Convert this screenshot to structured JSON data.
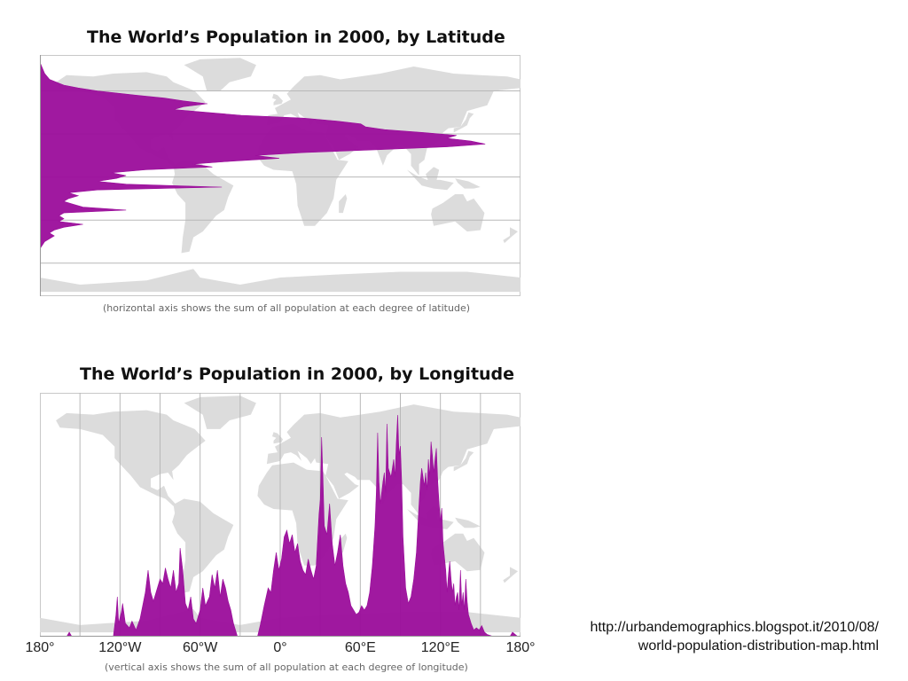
{
  "source_lines": [
    "http://urbandemographics.blogspot.it/2010/08/",
    "world-population-distribution-map.html"
  ],
  "colors": {
    "bars": "#9b0d9b",
    "land": "#dcdcdc",
    "gridlines": "#b8b8b8"
  },
  "chart_data": [
    {
      "type": "area",
      "orientation": "horizontal",
      "title": "The World’s Population in 2000, by Latitude",
      "note": "(horizontal axis shows the sum of all population at each degree of latitude)",
      "background": "world-map",
      "x_axis": "population sum (relative, unlabeled)",
      "y_axis": "latitude (degrees)",
      "ylim": [
        -60,
        90
      ],
      "grid": "horizontal lines every 30° latitude",
      "latitude_profile": [
        {
          "lat": 80,
          "value": 0.0
        },
        {
          "lat": 72,
          "value": 0.01
        },
        {
          "lat": 68,
          "value": 0.02
        },
        {
          "lat": 64,
          "value": 0.05
        },
        {
          "lat": 62,
          "value": 0.08
        },
        {
          "lat": 60,
          "value": 0.12
        },
        {
          "lat": 57,
          "value": 0.2
        },
        {
          "lat": 55,
          "value": 0.26
        },
        {
          "lat": 53,
          "value": 0.3
        },
        {
          "lat": 51,
          "value": 0.35
        },
        {
          "lat": 49,
          "value": 0.3
        },
        {
          "lat": 47,
          "value": 0.28
        },
        {
          "lat": 45,
          "value": 0.35
        },
        {
          "lat": 43,
          "value": 0.42
        },
        {
          "lat": 41,
          "value": 0.55
        },
        {
          "lat": 39,
          "value": 0.62
        },
        {
          "lat": 37,
          "value": 0.67
        },
        {
          "lat": 35,
          "value": 0.68
        },
        {
          "lat": 33,
          "value": 0.72
        },
        {
          "lat": 31,
          "value": 0.8
        },
        {
          "lat": 29,
          "value": 0.87
        },
        {
          "lat": 27,
          "value": 0.85
        },
        {
          "lat": 25,
          "value": 0.9
        },
        {
          "lat": 23,
          "value": 0.93
        },
        {
          "lat": 21,
          "value": 0.85
        },
        {
          "lat": 19,
          "value": 0.7
        },
        {
          "lat": 17,
          "value": 0.55
        },
        {
          "lat": 15,
          "value": 0.45
        },
        {
          "lat": 13,
          "value": 0.5
        },
        {
          "lat": 11,
          "value": 0.4
        },
        {
          "lat": 9,
          "value": 0.32
        },
        {
          "lat": 7,
          "value": 0.36
        },
        {
          "lat": 5,
          "value": 0.22
        },
        {
          "lat": 3,
          "value": 0.15
        },
        {
          "lat": 1,
          "value": 0.18
        },
        {
          "lat": -1,
          "value": 0.16
        },
        {
          "lat": -3,
          "value": 0.12
        },
        {
          "lat": -5,
          "value": 0.18
        },
        {
          "lat": -7,
          "value": 0.38
        },
        {
          "lat": -9,
          "value": 0.12
        },
        {
          "lat": -11,
          "value": 0.06
        },
        {
          "lat": -13,
          "value": 0.08
        },
        {
          "lat": -15,
          "value": 0.06
        },
        {
          "lat": -17,
          "value": 0.05
        },
        {
          "lat": -19,
          "value": 0.07
        },
        {
          "lat": -21,
          "value": 0.09
        },
        {
          "lat": -23,
          "value": 0.18
        },
        {
          "lat": -25,
          "value": 0.05
        },
        {
          "lat": -27,
          "value": 0.04
        },
        {
          "lat": -29,
          "value": 0.05
        },
        {
          "lat": -31,
          "value": 0.04
        },
        {
          "lat": -33,
          "value": 0.09
        },
        {
          "lat": -35,
          "value": 0.05
        },
        {
          "lat": -37,
          "value": 0.03
        },
        {
          "lat": -39,
          "value": 0.02
        },
        {
          "lat": -41,
          "value": 0.03
        },
        {
          "lat": -45,
          "value": 0.01
        },
        {
          "lat": -50,
          "value": 0.0
        }
      ]
    },
    {
      "type": "area",
      "orientation": "vertical",
      "title": "The World’s Population in 2000, by Longitude",
      "note": "(vertical axis shows the sum of all population at each degree of longitude)",
      "background": "world-map",
      "x_axis": "longitude (degrees)",
      "y_axis": "population sum (relative, unlabeled)",
      "xlim": [
        -180,
        180
      ],
      "grid": "vertical lines every 30° longitude",
      "tick_labels": [
        "180°",
        "120°W",
        "60°W",
        "0°",
        "60°E",
        "120°E",
        "180°"
      ],
      "tick_values": [
        -180,
        -120,
        -60,
        0,
        60,
        120,
        180
      ],
      "longitude_profile": [
        {
          "lon": -180,
          "value": 0.0
        },
        {
          "lon": -160,
          "value": 0.0
        },
        {
          "lon": -158,
          "value": 0.02
        },
        {
          "lon": -156,
          "value": 0.0
        },
        {
          "lon": -125,
          "value": 0.0
        },
        {
          "lon": -123,
          "value": 0.1
        },
        {
          "lon": -122,
          "value": 0.18
        },
        {
          "lon": -121,
          "value": 0.06
        },
        {
          "lon": -119,
          "value": 0.11
        },
        {
          "lon": -118,
          "value": 0.15
        },
        {
          "lon": -116,
          "value": 0.06
        },
        {
          "lon": -113,
          "value": 0.04
        },
        {
          "lon": -111,
          "value": 0.07
        },
        {
          "lon": -108,
          "value": 0.03
        },
        {
          "lon": -105,
          "value": 0.08
        },
        {
          "lon": -103,
          "value": 0.14
        },
        {
          "lon": -101,
          "value": 0.2
        },
        {
          "lon": -99,
          "value": 0.3
        },
        {
          "lon": -97,
          "value": 0.2
        },
        {
          "lon": -95,
          "value": 0.16
        },
        {
          "lon": -93,
          "value": 0.2
        },
        {
          "lon": -90,
          "value": 0.26
        },
        {
          "lon": -88,
          "value": 0.24
        },
        {
          "lon": -86,
          "value": 0.31
        },
        {
          "lon": -84,
          "value": 0.26
        },
        {
          "lon": -82,
          "value": 0.22
        },
        {
          "lon": -80,
          "value": 0.3
        },
        {
          "lon": -78,
          "value": 0.2
        },
        {
          "lon": -76,
          "value": 0.24
        },
        {
          "lon": -75,
          "value": 0.4
        },
        {
          "lon": -73,
          "value": 0.3
        },
        {
          "lon": -71,
          "value": 0.15
        },
        {
          "lon": -69,
          "value": 0.12
        },
        {
          "lon": -67,
          "value": 0.18
        },
        {
          "lon": -65,
          "value": 0.08
        },
        {
          "lon": -63,
          "value": 0.06
        },
        {
          "lon": -60,
          "value": 0.12
        },
        {
          "lon": -58,
          "value": 0.22
        },
        {
          "lon": -56,
          "value": 0.14
        },
        {
          "lon": -53,
          "value": 0.18
        },
        {
          "lon": -51,
          "value": 0.28
        },
        {
          "lon": -49,
          "value": 0.22
        },
        {
          "lon": -47,
          "value": 0.3
        },
        {
          "lon": -45,
          "value": 0.18
        },
        {
          "lon": -43,
          "value": 0.26
        },
        {
          "lon": -41,
          "value": 0.22
        },
        {
          "lon": -39,
          "value": 0.16
        },
        {
          "lon": -37,
          "value": 0.12
        },
        {
          "lon": -35,
          "value": 0.06
        },
        {
          "lon": -32,
          "value": 0.0
        },
        {
          "lon": -17,
          "value": 0.0
        },
        {
          "lon": -15,
          "value": 0.05
        },
        {
          "lon": -12,
          "value": 0.14
        },
        {
          "lon": -9,
          "value": 0.22
        },
        {
          "lon": -7,
          "value": 0.2
        },
        {
          "lon": -5,
          "value": 0.3
        },
        {
          "lon": -3,
          "value": 0.38
        },
        {
          "lon": -1,
          "value": 0.3
        },
        {
          "lon": 1,
          "value": 0.35
        },
        {
          "lon": 3,
          "value": 0.45
        },
        {
          "lon": 5,
          "value": 0.48
        },
        {
          "lon": 7,
          "value": 0.42
        },
        {
          "lon": 9,
          "value": 0.46
        },
        {
          "lon": 11,
          "value": 0.38
        },
        {
          "lon": 13,
          "value": 0.42
        },
        {
          "lon": 15,
          "value": 0.34
        },
        {
          "lon": 17,
          "value": 0.3
        },
        {
          "lon": 19,
          "value": 0.28
        },
        {
          "lon": 21,
          "value": 0.35
        },
        {
          "lon": 23,
          "value": 0.3
        },
        {
          "lon": 25,
          "value": 0.26
        },
        {
          "lon": 27,
          "value": 0.32
        },
        {
          "lon": 29,
          "value": 0.55
        },
        {
          "lon": 30,
          "value": 0.62
        },
        {
          "lon": 31,
          "value": 0.9
        },
        {
          "lon": 32,
          "value": 0.72
        },
        {
          "lon": 33,
          "value": 0.5
        },
        {
          "lon": 35,
          "value": 0.46
        },
        {
          "lon": 37,
          "value": 0.6
        },
        {
          "lon": 39,
          "value": 0.42
        },
        {
          "lon": 41,
          "value": 0.32
        },
        {
          "lon": 43,
          "value": 0.38
        },
        {
          "lon": 45,
          "value": 0.46
        },
        {
          "lon": 47,
          "value": 0.32
        },
        {
          "lon": 49,
          "value": 0.24
        },
        {
          "lon": 51,
          "value": 0.2
        },
        {
          "lon": 53,
          "value": 0.14
        },
        {
          "lon": 55,
          "value": 0.12
        },
        {
          "lon": 57,
          "value": 0.1
        },
        {
          "lon": 59,
          "value": 0.11
        },
        {
          "lon": 61,
          "value": 0.14
        },
        {
          "lon": 63,
          "value": 0.12
        },
        {
          "lon": 65,
          "value": 0.14
        },
        {
          "lon": 67,
          "value": 0.2
        },
        {
          "lon": 69,
          "value": 0.32
        },
        {
          "lon": 71,
          "value": 0.5
        },
        {
          "lon": 72,
          "value": 0.65
        },
        {
          "lon": 73,
          "value": 0.92
        },
        {
          "lon": 74,
          "value": 0.7
        },
        {
          "lon": 75,
          "value": 0.6
        },
        {
          "lon": 77,
          "value": 0.7
        },
        {
          "lon": 78,
          "value": 0.74
        },
        {
          "lon": 79,
          "value": 0.65
        },
        {
          "lon": 80,
          "value": 0.96
        },
        {
          "lon": 81,
          "value": 0.76
        },
        {
          "lon": 83,
          "value": 0.72
        },
        {
          "lon": 85,
          "value": 0.8
        },
        {
          "lon": 86,
          "value": 0.72
        },
        {
          "lon": 87,
          "value": 0.88
        },
        {
          "lon": 88,
          "value": 1.0
        },
        {
          "lon": 89,
          "value": 0.82
        },
        {
          "lon": 90,
          "value": 0.86
        },
        {
          "lon": 91,
          "value": 0.7
        },
        {
          "lon": 92,
          "value": 0.45
        },
        {
          "lon": 94,
          "value": 0.22
        },
        {
          "lon": 96,
          "value": 0.15
        },
        {
          "lon": 98,
          "value": 0.18
        },
        {
          "lon": 100,
          "value": 0.26
        },
        {
          "lon": 102,
          "value": 0.38
        },
        {
          "lon": 104,
          "value": 0.6
        },
        {
          "lon": 105,
          "value": 0.7
        },
        {
          "lon": 106,
          "value": 0.76
        },
        {
          "lon": 107,
          "value": 0.72
        },
        {
          "lon": 108,
          "value": 0.68
        },
        {
          "lon": 109,
          "value": 0.74
        },
        {
          "lon": 110,
          "value": 0.66
        },
        {
          "lon": 111,
          "value": 0.8
        },
        {
          "lon": 112,
          "value": 0.72
        },
        {
          "lon": 113,
          "value": 0.88
        },
        {
          "lon": 114,
          "value": 0.82
        },
        {
          "lon": 115,
          "value": 0.74
        },
        {
          "lon": 116,
          "value": 0.8
        },
        {
          "lon": 117,
          "value": 0.85
        },
        {
          "lon": 118,
          "value": 0.7
        },
        {
          "lon": 119,
          "value": 0.6
        },
        {
          "lon": 120,
          "value": 0.52
        },
        {
          "lon": 121,
          "value": 0.58
        },
        {
          "lon": 122,
          "value": 0.42
        },
        {
          "lon": 124,
          "value": 0.3
        },
        {
          "lon": 125,
          "value": 0.2
        },
        {
          "lon": 126,
          "value": 0.28
        },
        {
          "lon": 127,
          "value": 0.34
        },
        {
          "lon": 128,
          "value": 0.26
        },
        {
          "lon": 129,
          "value": 0.2
        },
        {
          "lon": 130,
          "value": 0.24
        },
        {
          "lon": 131,
          "value": 0.14
        },
        {
          "lon": 132,
          "value": 0.18
        },
        {
          "lon": 133,
          "value": 0.2
        },
        {
          "lon": 134,
          "value": 0.12
        },
        {
          "lon": 135,
          "value": 0.3
        },
        {
          "lon": 136,
          "value": 0.14
        },
        {
          "lon": 137,
          "value": 0.2
        },
        {
          "lon": 138,
          "value": 0.12
        },
        {
          "lon": 139,
          "value": 0.26
        },
        {
          "lon": 140,
          "value": 0.16
        },
        {
          "lon": 141,
          "value": 0.1
        },
        {
          "lon": 143,
          "value": 0.06
        },
        {
          "lon": 145,
          "value": 0.03
        },
        {
          "lon": 147,
          "value": 0.04
        },
        {
          "lon": 149,
          "value": 0.03
        },
        {
          "lon": 151,
          "value": 0.05
        },
        {
          "lon": 153,
          "value": 0.02
        },
        {
          "lon": 155,
          "value": 0.01
        },
        {
          "lon": 160,
          "value": 0.0
        },
        {
          "lon": 172,
          "value": 0.0
        },
        {
          "lon": 174,
          "value": 0.02
        },
        {
          "lon": 176,
          "value": 0.01
        },
        {
          "lon": 178,
          "value": 0.0
        },
        {
          "lon": 180,
          "value": 0.0
        }
      ]
    }
  ]
}
